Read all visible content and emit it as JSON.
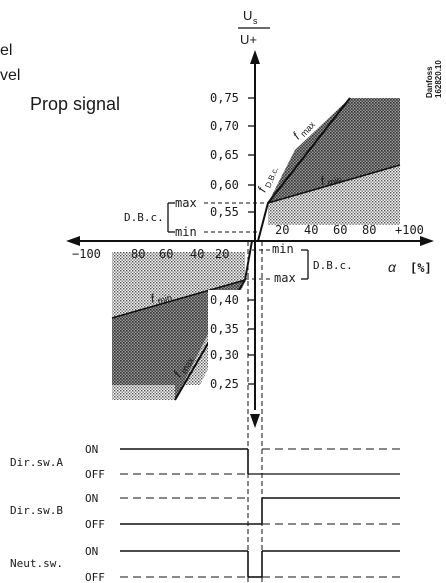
{
  "header_partial": {
    "line1": "el",
    "line2": "vel"
  },
  "signal_title": "Prop signal",
  "y_axis": {
    "label_top": "U",
    "label_top_sub": "s",
    "label_bottom": "U+"
  },
  "x_axis": {
    "label": "α",
    "unit": "[%]"
  },
  "watermark": {
    "line1": "Danfoss",
    "line2": "162820.10"
  },
  "y_ticks_upper": [
    "0,75",
    "0,70",
    "0,65",
    "0,60",
    "0,55"
  ],
  "y_ticks_lower": [
    "0,40",
    "0,35",
    "0,30",
    "0,25"
  ],
  "x_ticks_negative": [
    "−100",
    "80",
    "60",
    "40",
    "20"
  ],
  "x_ticks_positive": [
    "20",
    "40",
    "60",
    "80",
    "+100"
  ],
  "deadband_upper": {
    "label": "D.B.c.",
    "max": "max",
    "min": "min"
  },
  "deadband_lower": {
    "label": "D.B.c.",
    "min": "min",
    "max": "max"
  },
  "curve_labels": {
    "fmax_upper": "f",
    "fmax_upper_sub": "max",
    "fmin_upper": "f",
    "fmin_upper_sub": "min",
    "dbc_slope": "f",
    "dbc_slope_sub": "D.B.c.",
    "fmin_lower": "f",
    "fmin_lower_sub": "min",
    "fmax_lower": "f",
    "fmax_lower_sub": "max"
  },
  "switches": [
    {
      "name": "Dir.sw.A",
      "on": "ON",
      "off": "OFF"
    },
    {
      "name": "Dir.sw.B",
      "on": "ON",
      "off": "OFF"
    },
    {
      "name": "Neut.sw.",
      "on": "ON",
      "off": "OFF"
    }
  ]
}
